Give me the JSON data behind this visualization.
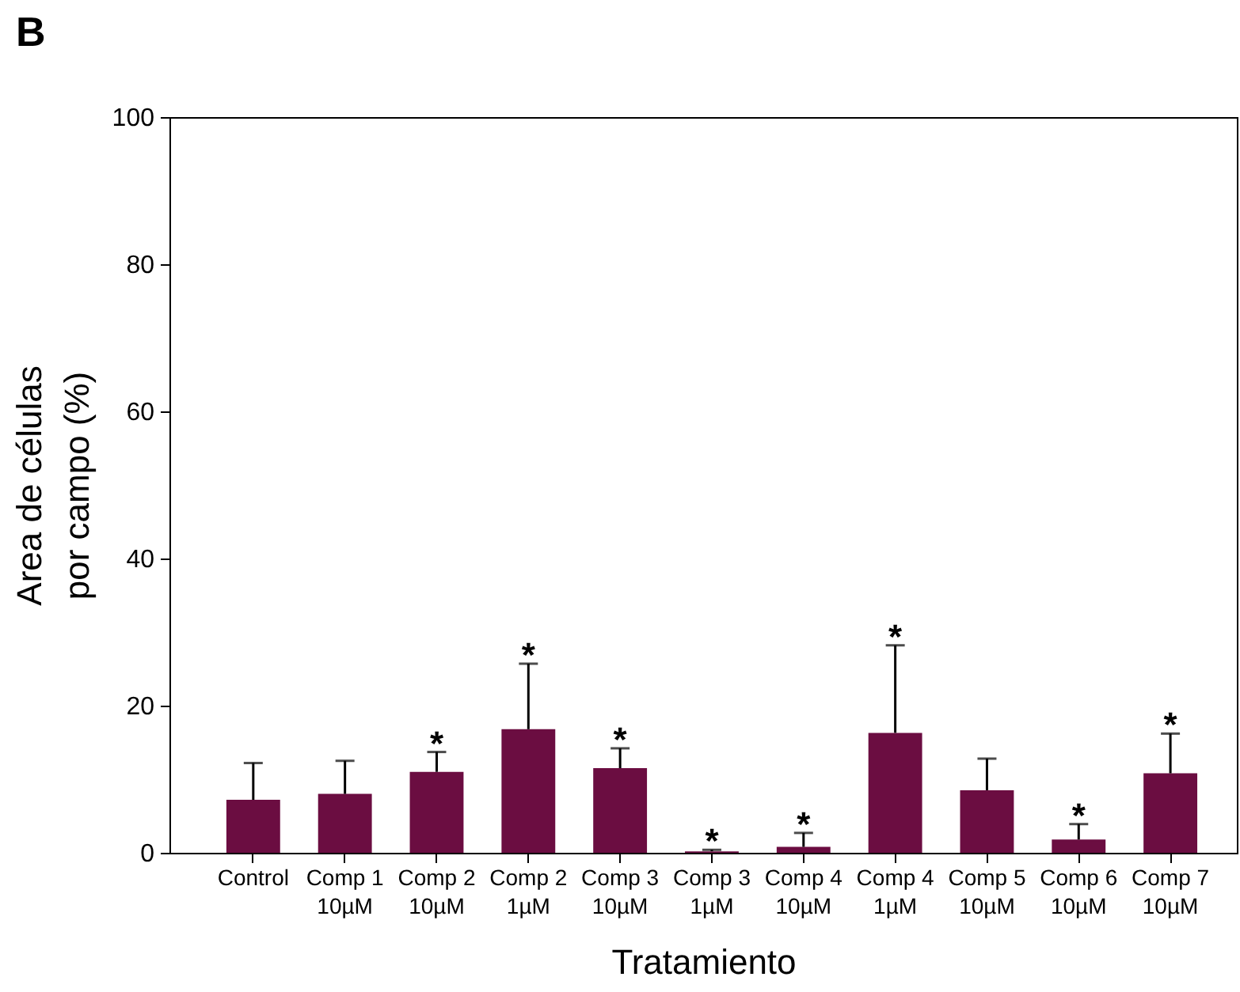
{
  "chart_data": {
    "type": "bar",
    "title": "B",
    "xlabel": "Tratamiento",
    "ylabel": "Area de células\npor campo (%)",
    "categories": [
      "Control",
      "Comp 1\n10µM",
      "Comp 2\n10µM",
      "Comp 2\n1µM",
      "Comp 3\n10µM",
      "Comp 3\n1µM",
      "Comp 4\n10µM",
      "Comp 4\n1µM",
      "Comp 5\n10µM",
      "Comp 6\n10µM",
      "Comp 7\n10µM"
    ],
    "values": [
      7.2,
      8.0,
      11.0,
      16.8,
      11.5,
      0.2,
      0.8,
      16.3,
      8.5,
      1.8,
      10.8
    ],
    "errors": [
      [
        7.2,
        12.2
      ],
      [
        8.0,
        12.5
      ],
      [
        11.0,
        13.7
      ],
      [
        16.8,
        25.7
      ],
      [
        11.5,
        14.2
      ],
      [
        0.2,
        0.4
      ],
      [
        0.8,
        2.7
      ],
      [
        16.3,
        28.2
      ],
      [
        8.5,
        12.8
      ],
      [
        1.8,
        3.9
      ],
      [
        10.8,
        16.2
      ]
    ],
    "color": "#6b0d41",
    "ylim": [
      0,
      100
    ],
    "yticks": [
      0,
      20,
      40,
      60,
      80,
      100
    ],
    "annotations": [
      {
        "text": "*",
        "x": "Comp 2\n10µM",
        "y": 13.7
      },
      {
        "text": "*",
        "x": "Comp 2\n1µM",
        "y": 25.7
      },
      {
        "text": "*",
        "x": "Comp 3\n10µM",
        "y": 14.2
      },
      {
        "text": "*",
        "x": "Comp 3\n1µM",
        "y": 0.4
      },
      {
        "text": "*",
        "x": "Comp 4\n10µM",
        "y": 2.7
      },
      {
        "text": "*",
        "x": "Comp 4\n1µM",
        "y": 28.2
      },
      {
        "text": "*",
        "x": "Comp 6\n10µM",
        "y": 3.9
      },
      {
        "text": "*",
        "x": "Comp 7\n10µM",
        "y": 16.2
      }
    ]
  }
}
